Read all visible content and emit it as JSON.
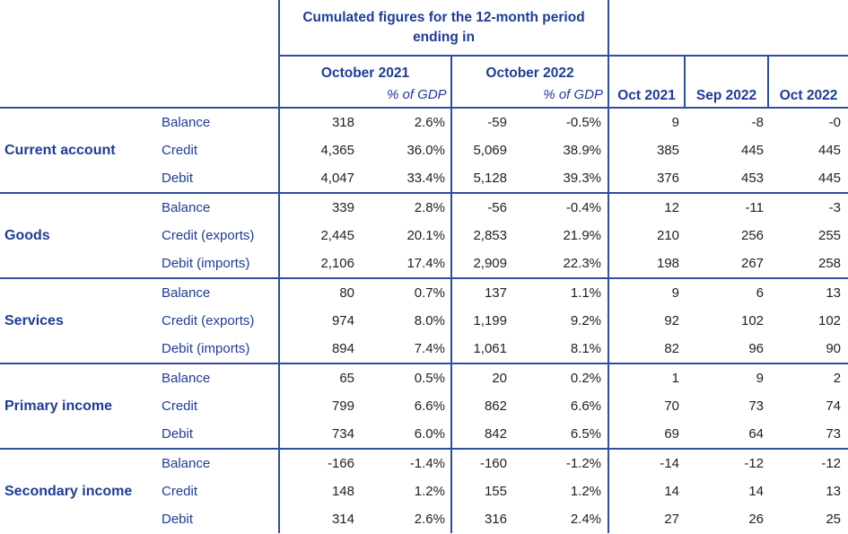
{
  "header": {
    "cumulated_title": "Cumulated figures for the 12-month period ending in",
    "period1": "October 2021",
    "period2": "October 2022",
    "pct_gdp": "% of GDP",
    "monthly": [
      "Oct 2021",
      "Sep 2022",
      "Oct 2022"
    ]
  },
  "sections": [
    {
      "name": "Current account",
      "rows": [
        {
          "label": "Balance",
          "v1": "318",
          "p1": "2.6%",
          "v2": "-59",
          "p2": "-0.5%",
          "m1": "9",
          "m2": "-8",
          "m3": "-0"
        },
        {
          "label": "Credit",
          "v1": "4,365",
          "p1": "36.0%",
          "v2": "5,069",
          "p2": "38.9%",
          "m1": "385",
          "m2": "445",
          "m3": "445"
        },
        {
          "label": "Debit",
          "v1": "4,047",
          "p1": "33.4%",
          "v2": "5,128",
          "p2": "39.3%",
          "m1": "376",
          "m2": "453",
          "m3": "445"
        }
      ]
    },
    {
      "name": "Goods",
      "rows": [
        {
          "label": "Balance",
          "v1": "339",
          "p1": "2.8%",
          "v2": "-56",
          "p2": "-0.4%",
          "m1": "12",
          "m2": "-11",
          "m3": "-3"
        },
        {
          "label": "Credit (exports)",
          "v1": "2,445",
          "p1": "20.1%",
          "v2": "2,853",
          "p2": "21.9%",
          "m1": "210",
          "m2": "256",
          "m3": "255"
        },
        {
          "label": "Debit (imports)",
          "v1": "2,106",
          "p1": "17.4%",
          "v2": "2,909",
          "p2": "22.3%",
          "m1": "198",
          "m2": "267",
          "m3": "258"
        }
      ]
    },
    {
      "name": "Services",
      "rows": [
        {
          "label": "Balance",
          "v1": "80",
          "p1": "0.7%",
          "v2": "137",
          "p2": "1.1%",
          "m1": "9",
          "m2": "6",
          "m3": "13"
        },
        {
          "label": "Credit (exports)",
          "v1": "974",
          "p1": "8.0%",
          "v2": "1,199",
          "p2": "9.2%",
          "m1": "92",
          "m2": "102",
          "m3": "102"
        },
        {
          "label": "Debit (imports)",
          "v1": "894",
          "p1": "7.4%",
          "v2": "1,061",
          "p2": "8.1%",
          "m1": "82",
          "m2": "96",
          "m3": "90"
        }
      ]
    },
    {
      "name": "Primary income",
      "rows": [
        {
          "label": "Balance",
          "v1": "65",
          "p1": "0.5%",
          "v2": "20",
          "p2": "0.2%",
          "m1": "1",
          "m2": "9",
          "m3": "2"
        },
        {
          "label": "Credit",
          "v1": "799",
          "p1": "6.6%",
          "v2": "862",
          "p2": "6.6%",
          "m1": "70",
          "m2": "73",
          "m3": "74"
        },
        {
          "label": "Debit",
          "v1": "734",
          "p1": "6.0%",
          "v2": "842",
          "p2": "6.5%",
          "m1": "69",
          "m2": "64",
          "m3": "73"
        }
      ]
    },
    {
      "name": "Secondary income",
      "rows": [
        {
          "label": "Balance",
          "v1": "-166",
          "p1": "-1.4%",
          "v2": "-160",
          "p2": "-1.2%",
          "m1": "-14",
          "m2": "-12",
          "m3": "-12"
        },
        {
          "label": "Credit",
          "v1": "148",
          "p1": "1.2%",
          "v2": "155",
          "p2": "1.2%",
          "m1": "14",
          "m2": "14",
          "m3": "13"
        },
        {
          "label": "Debit",
          "v1": "314",
          "p1": "2.6%",
          "v2": "316",
          "p2": "2.4%",
          "m1": "27",
          "m2": "26",
          "m3": "25"
        }
      ]
    }
  ]
}
